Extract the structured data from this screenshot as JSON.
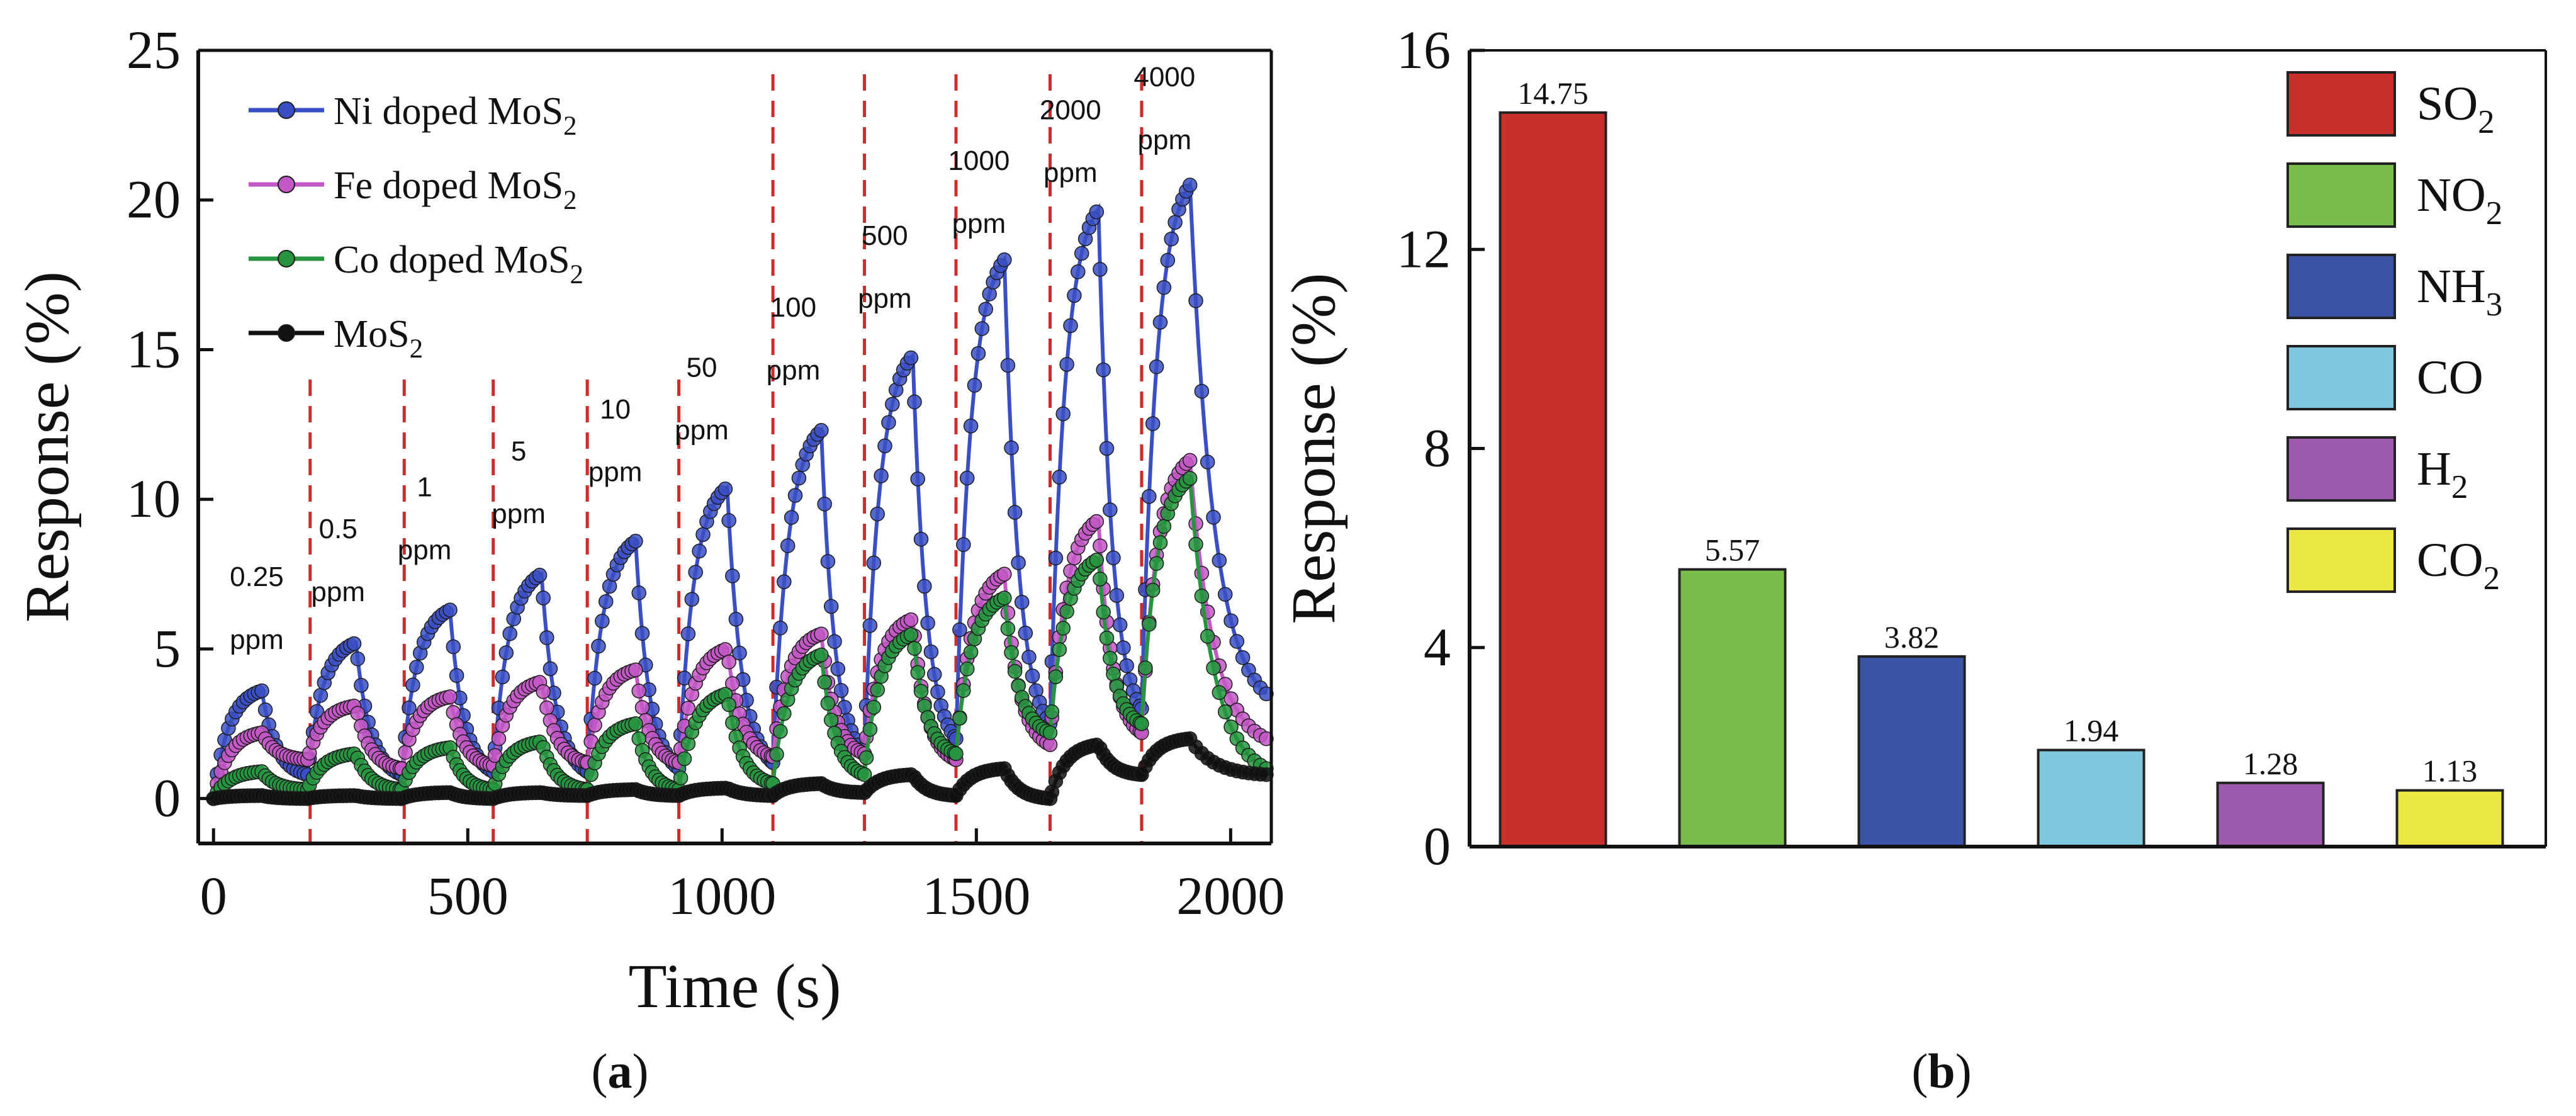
{
  "panels": {
    "a_caption": "a",
    "b_caption": "b"
  },
  "chart_data": [
    {
      "type": "line",
      "panel": "a",
      "xlabel": "Time (s)",
      "ylabel": "Response (%)",
      "xlim": [
        -30,
        2080
      ],
      "ylim": [
        -1.5,
        25
      ],
      "xticks": [
        0,
        500,
        1000,
        1500,
        2000
      ],
      "yticks": [
        0,
        5,
        10,
        15,
        20,
        25
      ],
      "x_tick_labels": [
        "0",
        "500",
        "1000",
        "1500",
        "2000"
      ],
      "y_tick_labels": [
        "0",
        "5",
        "10",
        "15",
        "20",
        "25"
      ],
      "legend_position": "top-left",
      "gas_switch_times": [
        0,
        185,
        370,
        550,
        735,
        915,
        1100,
        1280,
        1460,
        1645,
        1825
      ],
      "switch_lines": [
        190,
        375,
        550,
        735,
        915,
        1100,
        1280,
        1460,
        1645,
        1825
      ],
      "pulse_duration": 95,
      "concentration_annotations": [
        {
          "value": "0.25",
          "unit": "ppm",
          "x": 85,
          "y_value": 7.1,
          "y_unit": 5.0
        },
        {
          "value": "0.5",
          "unit": "ppm",
          "x": 245,
          "y_value": 8.7,
          "y_unit": 6.6
        },
        {
          "value": "1",
          "unit": "ppm",
          "x": 415,
          "y_value": 10.1,
          "y_unit": 8.0
        },
        {
          "value": "5",
          "unit": "ppm",
          "x": 600,
          "y_value": 11.3,
          "y_unit": 9.2
        },
        {
          "value": "10",
          "unit": "ppm",
          "x": 790,
          "y_value": 12.7,
          "y_unit": 10.6
        },
        {
          "value": "50",
          "unit": "ppm",
          "x": 960,
          "y_value": 14.1,
          "y_unit": 12.0
        },
        {
          "value": "100",
          "unit": "ppm",
          "x": 1140,
          "y_value": 16.1,
          "y_unit": 14.0
        },
        {
          "value": "500",
          "unit": "ppm",
          "x": 1320,
          "y_value": 18.5,
          "y_unit": 16.4
        },
        {
          "value": "1000",
          "unit": "ppm",
          "x": 1505,
          "y_value": 21.0,
          "y_unit": 18.9
        },
        {
          "value": "2000",
          "unit": "ppm",
          "x": 1685,
          "y_value": 22.7,
          "y_unit": 20.6
        },
        {
          "value": "4000",
          "unit": "ppm",
          "x": 1870,
          "y_value": 23.8,
          "y_unit": 21.7
        }
      ],
      "series": [
        {
          "name": "Ni doped MoS",
          "subscript": "2",
          "color": "#3b4fc4",
          "peaks": [
            3.6,
            5.2,
            6.3,
            7.5,
            8.6,
            10.4,
            12.3,
            14.8,
            18.0,
            19.7,
            20.5
          ],
          "troughs": [
            0.0,
            0.8,
            0.8,
            0.9,
            0.9,
            1.0,
            1.2,
            1.5,
            2.0,
            2.5,
            3.0,
            3.5
          ]
        },
        {
          "name": "Fe doped MoS",
          "subscript": "2",
          "color": "#c357c6",
          "peaks": [
            2.2,
            3.1,
            3.4,
            3.9,
            4.3,
            5.0,
            5.5,
            6.0,
            7.5,
            9.3,
            11.3
          ],
          "troughs": [
            0.0,
            1.3,
            1.0,
            1.1,
            1.2,
            1.2,
            1.4,
            1.5,
            1.3,
            1.8,
            2.2,
            2.0
          ]
        },
        {
          "name": "Co doped MoS",
          "subscript": "2",
          "color": "#27953f",
          "peaks": [
            0.9,
            1.5,
            1.7,
            1.9,
            2.5,
            3.5,
            4.8,
            5.5,
            6.7,
            8.0,
            10.7
          ],
          "troughs": [
            0.0,
            0.3,
            0.3,
            0.3,
            0.3,
            0.3,
            0.5,
            0.8,
            1.5,
            2.2,
            2.5,
            1.0
          ]
        },
        {
          "name": "MoS",
          "subscript": "2",
          "color": "#111111",
          "peaks": [
            0.1,
            0.1,
            0.2,
            0.2,
            0.3,
            0.35,
            0.5,
            0.8,
            1.0,
            1.8,
            2.0
          ],
          "troughs": [
            0.0,
            0.0,
            0.0,
            0.0,
            0.1,
            0.1,
            0.1,
            0.2,
            0.1,
            0.0,
            0.8,
            0.8
          ]
        }
      ]
    },
    {
      "type": "bar",
      "panel": "b",
      "xlabel": "",
      "ylabel": "Response (%)",
      "ylim": [
        0,
        16
      ],
      "yticks": [
        0,
        4,
        8,
        12,
        16
      ],
      "y_tick_labels": [
        "0",
        "4",
        "8",
        "12",
        "16"
      ],
      "legend_position": "top-right",
      "bars": [
        {
          "name": "SO",
          "subscript": "2",
          "value": 14.75,
          "label": "14.75",
          "color": "#c8312b"
        },
        {
          "name": "NO",
          "subscript": "2",
          "value": 5.57,
          "label": "5.57",
          "color": "#7abd4c"
        },
        {
          "name": "NH",
          "subscript": "3",
          "value": 3.82,
          "label": "3.82",
          "color": "#3a55a8"
        },
        {
          "name": "CO",
          "subscript": "",
          "value": 1.94,
          "label": "1.94",
          "color": "#7ec7dc"
        },
        {
          "name": "H",
          "subscript": "2",
          "value": 1.28,
          "label": "1.28",
          "color": "#9e5aac"
        },
        {
          "name": "CO",
          "subscript": "2",
          "value": 1.13,
          "label": "1.13",
          "color": "#ece843"
        }
      ]
    }
  ]
}
